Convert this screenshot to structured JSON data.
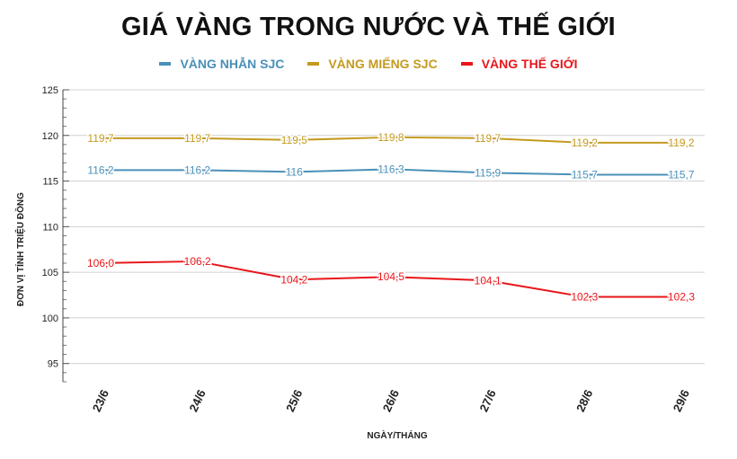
{
  "chart_data": {
    "type": "line",
    "title": "GIÁ VÀNG TRONG NƯỚC VÀ THẾ GIỚI",
    "xlabel": "NGÀY/THÁNG",
    "ylabel": "ĐƠN VỊ TÍNH TRIỆU ĐỒNG",
    "categories": [
      "23/6",
      "24/6",
      "25/6",
      "26/6",
      "27/6",
      "28/6",
      "29/6"
    ],
    "ylim": [
      93,
      125
    ],
    "yticks": [
      95,
      100,
      105,
      110,
      115,
      120,
      125
    ],
    "grid": "horizontal",
    "legend_position": "top",
    "series": [
      {
        "name": "VÀNG NHẪN SJC",
        "color": "#4a90b8",
        "values": [
          116.2,
          116.2,
          116,
          116.3,
          115.9,
          115.7,
          115.7
        ],
        "labels": [
          "116,2",
          "116,2",
          "116",
          "116,3",
          "115,9",
          "115,7",
          "115,7"
        ]
      },
      {
        "name": "VÀNG MIẾNG SJC",
        "color": "#c49a1f",
        "values": [
          119.7,
          119.7,
          119.5,
          119.8,
          119.7,
          119.2,
          119.2
        ],
        "labels": [
          "119,7",
          "119,7",
          "119,5",
          "119,8",
          "119,7",
          "119,2",
          "119,2"
        ]
      },
      {
        "name": "VÀNG THẾ GIỚI",
        "color": "#e8161b",
        "values": [
          106.0,
          106.2,
          104.2,
          104.5,
          104.1,
          102.3,
          102.3
        ],
        "labels": [
          "106,0",
          "106,2",
          "104,2",
          "104,5",
          "104,1",
          "102,3",
          "102,3"
        ]
      }
    ]
  }
}
